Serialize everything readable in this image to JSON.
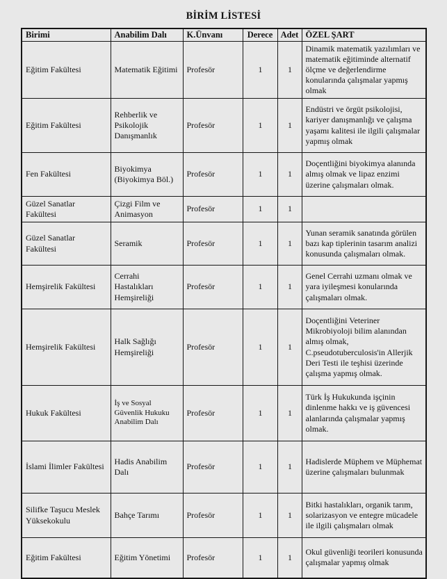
{
  "page": {
    "title": "BİRİM LİSTESİ"
  },
  "colors": {
    "background": "#e8e8e8",
    "border": "#161616",
    "text": "#131313"
  },
  "table": {
    "headers": [
      "Birimi",
      "Anabilim Dalı",
      "K.Ünvanı",
      "Derece",
      "Adet",
      "ÖZEL ŞART"
    ],
    "rows": [
      {
        "cells": [
          "Eğitim Fakültesi",
          "Matematik Eğitimi",
          "Profesör",
          "1",
          "1",
          "Dinamik matematik yazılımları ve matematik eğitiminde alternatif ölçme ve değerlendirme konularında çalışmalar yapmış olmak"
        ]
      },
      {
        "cells": [
          "Eğitim Fakültesi",
          "Rehberlik ve Psikolojik Danışmanlık",
          "Profesör",
          "1",
          "1",
          "Endüstri ve örgüt psikolojisi, kariyer danışmanlığı ve çalışma yaşamı kalitesi ile ilgili çalışmalar yapmış olmak"
        ]
      },
      {
        "cells": [
          "Fen Fakültesi",
          "Biyokimya (Biyokimya Böl.)",
          "Profesör",
          "1",
          "1",
          "Doçentliğini biyokimya alanında almış olmak ve lipaz enzimi üzerine çalışmaları olmak."
        ]
      },
      {
        "cells": [
          "Güzel Sanatlar Fakültesi",
          "Çizgi Film ve Animasyon",
          "Profesör",
          "1",
          "1",
          ""
        ]
      },
      {
        "cells": [
          "Güzel Sanatlar Fakültesi",
          "Seramik",
          "Profesör",
          "1",
          "1",
          "Yunan seramik sanatında görülen bazı kap tiplerinin tasarım analizi konusunda çalışmaları olmak."
        ]
      },
      {
        "cells": [
          "Hemşirelik Fakültesi",
          "Cerrahi Hastalıkları Hemşireliği",
          "Profesör",
          "1",
          "1",
          "Genel Cerrahi uzmanı olmak ve yara iyileşmesi konularında çalışmaları olmak."
        ]
      },
      {
        "cells": [
          "Hemşirelik Fakültesi",
          "Halk Sağlığı Hemşireliği",
          "Profesör",
          "1",
          "1",
          "Doçentliğini Veteriner Mikrobiyoloji bilim alanından almış olmak, C.pseudotuberculosis'in Allerjik Deri Testi ile teşhisi üzerinde çalışma yapmış olmak."
        ]
      },
      {
        "cells": [
          "Hukuk Fakültesi",
          "İş ve Sosyal Güvenlik Hukuku Anabilim Dalı",
          "Profesör",
          "1",
          "1",
          "Türk İş Hukukunda işçinin dinlenme hakkı ve iş güvencesi alanlarında çalışmalar yapmış olmak."
        ]
      },
      {
        "cells": [
          "İslami İlimler Fakültesi",
          "Hadis Anabilim Dalı",
          "Profesör",
          "1",
          "1",
          "Hadislerde Müphem ve Müphemat üzerine çalışmaları bulunmak"
        ]
      },
      {
        "cells": [
          "Silifke Taşucu Meslek Yüksekokulu",
          "Bahçe Tarımı",
          "Profesör",
          "1",
          "1",
          "Bitki hastalıkları, organik tarım, solarizasyon ve entegre mücadele ile ilgili çalışmaları olmak"
        ]
      },
      {
        "cells": [
          "Eğitim Fakültesi",
          "Eğitim Yönetimi",
          "Profesör",
          "1",
          "1",
          "Okul güvenliği teorileri konusunda çalışmalar yapmış olmak"
        ]
      }
    ]
  }
}
